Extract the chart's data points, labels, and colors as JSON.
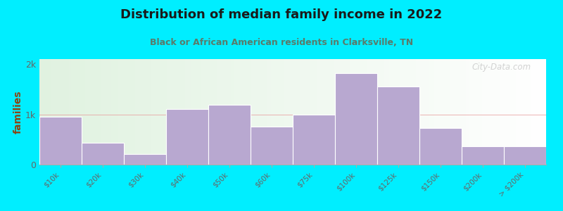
{
  "title": "Distribution of median family income in 2022",
  "subtitle": "Black or African American residents in Clarksville, TN",
  "categories": [
    "$10k",
    "$20k",
    "$30k",
    "$40k",
    "$50k",
    "$60k",
    "$75k",
    "$100k",
    "$125k",
    "$150k",
    "$200k",
    "> $200k"
  ],
  "values": [
    950,
    430,
    210,
    1100,
    1190,
    750,
    1000,
    1820,
    1560,
    730,
    370,
    370
  ],
  "bar_color": "#b8a8d0",
  "bar_edge_color": "#ffffff",
  "background_outer": "#00eeff",
  "title_color": "#1a1a1a",
  "subtitle_color": "#5a7a6a",
  "ylabel": "families",
  "ylabel_color": "#8b4513",
  "tick_color": "#666666",
  "yticks": [
    0,
    1000,
    2000
  ],
  "ytick_labels": [
    "0",
    "1k",
    "2k"
  ],
  "ylim": [
    0,
    2100
  ],
  "watermark": "City-Data.com",
  "hline_color": "#e8a0a0",
  "hline_y": 1000,
  "title_fontsize": 13,
  "subtitle_fontsize": 9
}
